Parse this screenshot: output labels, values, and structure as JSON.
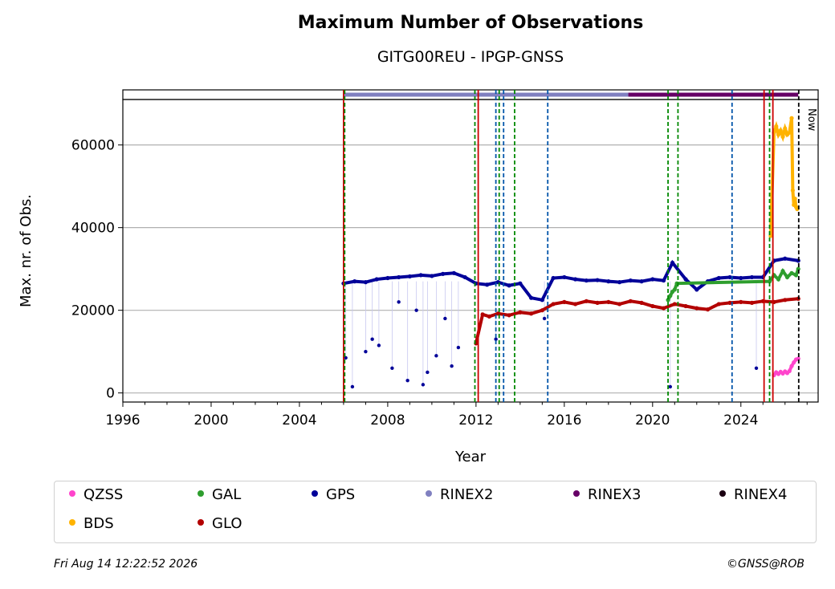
{
  "chart_data": {
    "type": "scatter",
    "title": "Maximum Number of Observations",
    "subtitle": "GITG00REU - IPGP-GNSS",
    "xlabel": "Year",
    "ylabel": "Max. nr. of Obs.",
    "xlim": [
      1996,
      2027.5
    ],
    "ylim": [
      -2200,
      71000
    ],
    "x_ticks": [
      1996,
      2000,
      2004,
      2008,
      2012,
      2016,
      2020,
      2024
    ],
    "y_ticks": [
      0,
      20000,
      40000,
      60000
    ],
    "grid": "horizontal",
    "legend_position": "bottom",
    "now_label": "Now",
    "now_year": 2026.62,
    "series": [
      {
        "name": "QZSS",
        "color": "#ff44cc",
        "x": [
          2025.5,
          2025.6,
          2025.7,
          2025.8,
          2025.9,
          2026.0,
          2026.1,
          2026.2,
          2026.3,
          2026.4,
          2026.5,
          2026.6
        ],
        "y": [
          4300,
          5000,
          4600,
          5100,
          4700,
          5200,
          4800,
          5300,
          6500,
          7400,
          8100,
          8300
        ]
      },
      {
        "name": "BDS",
        "color": "#ffb300",
        "x": [
          2025.35,
          2025.5,
          2025.6,
          2025.7,
          2025.8,
          2025.9,
          2026.0,
          2026.1,
          2026.2,
          2026.3,
          2026.35,
          2026.4,
          2026.45,
          2026.5,
          2026.55
        ],
        "y": [
          38000,
          63000,
          64500,
          62500,
          63500,
          62000,
          64000,
          62500,
          63000,
          66500,
          49000,
          45500,
          47000,
          45000,
          44500
        ]
      },
      {
        "name": "GAL",
        "color": "#2e9e2e",
        "x": [
          2020.7,
          2020.8,
          2020.9,
          2021.0,
          2021.1,
          2025.3,
          2025.5,
          2025.7,
          2025.9,
          2026.1,
          2026.3,
          2026.5,
          2026.6
        ],
        "y": [
          22500,
          23500,
          24500,
          25000,
          26500,
          27000,
          28500,
          27500,
          29500,
          28000,
          29000,
          28500,
          30000
        ]
      },
      {
        "name": "GLO",
        "color": "#b30000",
        "x": [
          2012.0,
          2012.3,
          2012.6,
          2013.0,
          2013.5,
          2014.0,
          2014.5,
          2015.0,
          2015.5,
          2016.0,
          2016.5,
          2017.0,
          2017.5,
          2018.0,
          2018.5,
          2019.0,
          2019.5,
          2020.0,
          2020.5,
          2021.0,
          2021.5,
          2022.0,
          2022.5,
          2023.0,
          2023.5,
          2024.0,
          2024.5,
          2025.0,
          2025.5,
          2026.0,
          2026.6
        ],
        "y": [
          12000,
          19000,
          18500,
          19200,
          18800,
          19500,
          19200,
          20000,
          21500,
          22000,
          21500,
          22200,
          21800,
          22000,
          21500,
          22200,
          21800,
          21000,
          20500,
          21500,
          21000,
          20500,
          20200,
          21500,
          21800,
          22000,
          21800,
          22200,
          22000,
          22500,
          22800
        ]
      },
      {
        "name": "GPS",
        "color": "#000099",
        "x": [
          2006.0,
          2006.5,
          2007.0,
          2007.5,
          2008.0,
          2008.5,
          2009.0,
          2009.5,
          2010.0,
          2010.5,
          2011.0,
          2011.5,
          2012.0,
          2012.5,
          2013.0,
          2013.5,
          2014.0,
          2014.5,
          2015.0,
          2015.5,
          2016.0,
          2016.5,
          2017.0,
          2017.5,
          2018.0,
          2018.5,
          2019.0,
          2019.5,
          2020.0,
          2020.5,
          2020.9,
          2021.5,
          2022.0,
          2022.5,
          2023.0,
          2023.5,
          2024.0,
          2024.5,
          2025.0,
          2025.5,
          2026.0,
          2026.6
        ],
        "y": [
          26500,
          27000,
          26800,
          27500,
          27800,
          28000,
          28200,
          28500,
          28300,
          28800,
          29000,
          28000,
          26500,
          26200,
          26800,
          26000,
          26500,
          23000,
          22500,
          27800,
          28000,
          27500,
          27200,
          27300,
          27000,
          26800,
          27200,
          27000,
          27500,
          27200,
          31500,
          27500,
          25000,
          27000,
          27800,
          28000,
          27800,
          28000,
          28000,
          32000,
          32500,
          32000
        ]
      },
      {
        "name": "RINEX2",
        "color": "#8080c0"
      },
      {
        "name": "RINEX3",
        "color": "#660066"
      },
      {
        "name": "RINEX4",
        "color": "#1a0011"
      }
    ],
    "gps_outliers": {
      "x": [
        2006.1,
        2006.4,
        2007.0,
        2007.6,
        2008.2,
        2008.9,
        2009.3,
        2009.8,
        2010.2,
        2010.6,
        2011.2,
        2008.5,
        2009.6,
        2010.9,
        2007.3,
        2012.9,
        2015.1,
        2020.8,
        2024.7
      ],
      "y": [
        8500,
        1500,
        10000,
        11500,
        6000,
        3000,
        20000,
        5000,
        9000,
        18000,
        11000,
        22000,
        2000,
        6500,
        13000,
        13000,
        18000,
        1500,
        6000
      ]
    },
    "rinex_bars": [
      {
        "name": "RINEX2",
        "x0": 2006.0,
        "x1": 2018.9
      },
      {
        "name": "RINEX3",
        "x0": 2018.9,
        "x1": 2026.6
      }
    ],
    "vlines": [
      {
        "x": 2006.0,
        "color": "#cc0000",
        "style": "solid"
      },
      {
        "x": 2006.05,
        "color": "#008800",
        "style": "dashed"
      },
      {
        "x": 2011.95,
        "color": "#008800",
        "style": "dashed"
      },
      {
        "x": 2012.1,
        "color": "#cc0000",
        "style": "solid"
      },
      {
        "x": 2012.9,
        "color": "#0055aa",
        "style": "dashed"
      },
      {
        "x": 2013.05,
        "color": "#008800",
        "style": "dashed"
      },
      {
        "x": 2013.25,
        "color": "#0055aa",
        "style": "dashed"
      },
      {
        "x": 2013.75,
        "color": "#008800",
        "style": "dashed"
      },
      {
        "x": 2015.25,
        "color": "#0055aa",
        "style": "dashed"
      },
      {
        "x": 2020.7,
        "color": "#008800",
        "style": "dashed"
      },
      {
        "x": 2021.15,
        "color": "#008800",
        "style": "dashed"
      },
      {
        "x": 2023.6,
        "color": "#0055aa",
        "style": "dashed"
      },
      {
        "x": 2025.05,
        "color": "#cc0000",
        "style": "solid"
      },
      {
        "x": 2025.3,
        "color": "#008800",
        "style": "dashed"
      },
      {
        "x": 2025.45,
        "color": "#cc0000",
        "style": "solid"
      },
      {
        "x": 2026.62,
        "color": "#000000",
        "style": "dashed"
      }
    ]
  },
  "legend": [
    {
      "label": "QZSS",
      "color": "#ff44cc"
    },
    {
      "label": "GAL",
      "color": "#2e9e2e"
    },
    {
      "label": "GPS",
      "color": "#000099"
    },
    {
      "label": "RINEX2",
      "color": "#8080c0"
    },
    {
      "label": "RINEX3",
      "color": "#660066"
    },
    {
      "label": "RINEX4",
      "color": "#1a0011"
    },
    {
      "label": "BDS",
      "color": "#ffb300"
    },
    {
      "label": "GLO",
      "color": "#b30000"
    }
  ],
  "footer": {
    "timestamp": "Fri Aug 14 12:22:52 2026",
    "credit": "©GNSS@ROB"
  }
}
